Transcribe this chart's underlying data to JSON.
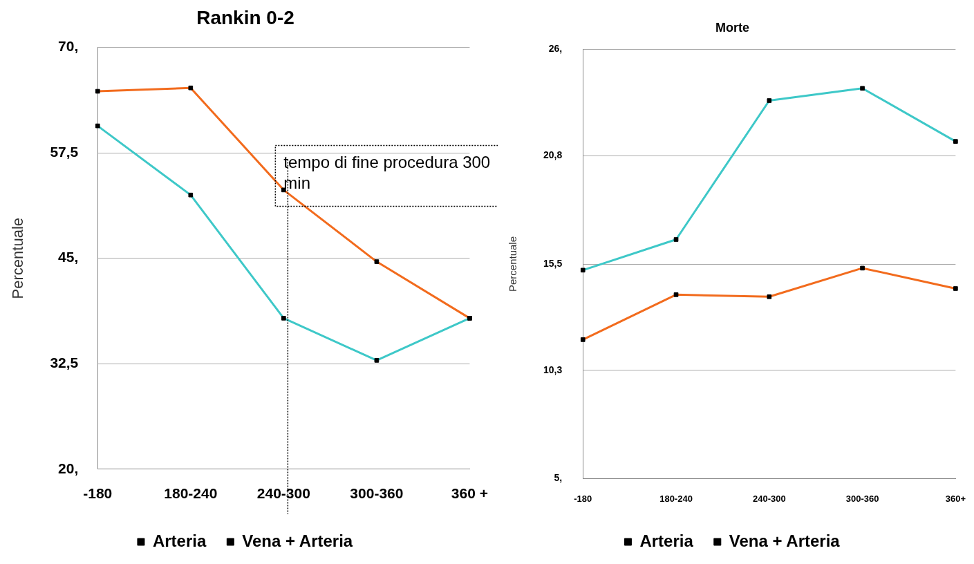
{
  "chart_data": [
    {
      "type": "line",
      "title": "Rankin 0-2",
      "ylabel": "Percentuale",
      "categories": [
        "-180",
        "180-240",
        "240-300",
        "300-360",
        "360 +"
      ],
      "series": [
        {
          "name": "Arteria",
          "color": "#3ec8c8",
          "values": [
            60.7,
            52.5,
            37.9,
            32.9,
            37.9
          ]
        },
        {
          "name": "Vena + Arteria",
          "color": "#f26b1d",
          "values": [
            64.8,
            65.2,
            53.1,
            44.6,
            37.9
          ]
        }
      ],
      "ylim": [
        20,
        70
      ],
      "yticks": [
        {
          "value": 20,
          "label": "20,"
        },
        {
          "value": 32.5,
          "label": "32,5"
        },
        {
          "value": 45,
          "label": "45,"
        },
        {
          "value": 57.5,
          "label": "57,5"
        },
        {
          "value": 70,
          "label": "70,"
        }
      ],
      "grid": "y",
      "legend": "bottom",
      "marker": "square",
      "line_style": "solid",
      "ref_lines": [
        {
          "axis": "x",
          "value": "240-300",
          "color": "#000000",
          "line_style": "dotted"
        }
      ],
      "annotations": [
        "tempo di fine procedura 300 min"
      ]
    },
    {
      "type": "line",
      "title": "Morte",
      "ylabel": "Percentuale",
      "categories": [
        "-180",
        "180-240",
        "240-300",
        "300-360",
        "360+"
      ],
      "series": [
        {
          "name": "Arteria",
          "color": "#3ec8c8",
          "values": [
            15.2,
            16.7,
            23.5,
            24.1,
            21.5
          ]
        },
        {
          "name": "Vena + Arteria",
          "color": "#f26b1d",
          "values": [
            11.8,
            14.0,
            13.9,
            15.3,
            14.3
          ]
        }
      ],
      "ylim": [
        5,
        26
      ],
      "yticks": [
        {
          "value": 5,
          "label": "5,"
        },
        {
          "value": 10.3,
          "label": "10,3"
        },
        {
          "value": 15.5,
          "label": "15,5"
        },
        {
          "value": 20.8,
          "label": "20,8"
        },
        {
          "value": 26,
          "label": "26,"
        }
      ],
      "grid": "y",
      "legend": "bottom",
      "marker": "square",
      "line_style": "solid"
    }
  ]
}
